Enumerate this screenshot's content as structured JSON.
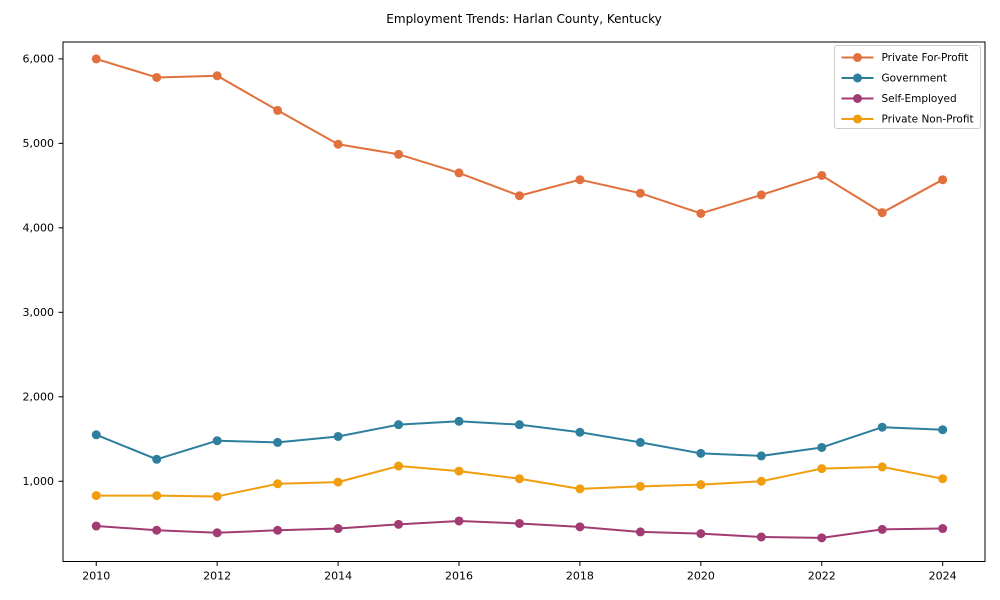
{
  "figure": {
    "background": "#ffffff",
    "spine_color": "#000000",
    "tick_color": "#000000",
    "legend": {
      "border_color": "#cccccc",
      "background": "#ffffff"
    }
  },
  "chart_data": {
    "type": "line",
    "title": "Employment Trends: Harlan County, Kentucky",
    "xlabel": "",
    "ylabel": "",
    "grid": false,
    "legend_position": "upper right",
    "marker": "circle",
    "x": [
      2010,
      2011,
      2012,
      2013,
      2014,
      2015,
      2016,
      2017,
      2018,
      2019,
      2020,
      2021,
      2022,
      2023,
      2024
    ],
    "series": [
      {
        "name": "Private For-Profit",
        "color": "#e1703c",
        "values": [
          6000,
          5780,
          5800,
          5390,
          4990,
          4870,
          4650,
          4380,
          4570,
          4410,
          4170,
          4390,
          4620,
          4180,
          4570
        ]
      },
      {
        "name": "Government",
        "color": "#2d7f9d",
        "values": [
          1550,
          1260,
          1480,
          1460,
          1530,
          1670,
          1710,
          1670,
          1580,
          1460,
          1330,
          1300,
          1400,
          1640,
          1610
        ]
      },
      {
        "name": "Self-Employed",
        "color": "#a23b72",
        "values": [
          470,
          420,
          390,
          420,
          440,
          490,
          530,
          500,
          460,
          400,
          380,
          340,
          330,
          430,
          440
        ]
      },
      {
        "name": "Private Non-Profit",
        "color": "#f09d0e",
        "values": [
          830,
          830,
          820,
          970,
          990,
          1180,
          1120,
          1030,
          910,
          940,
          960,
          1000,
          1150,
          1170,
          1030
        ]
      }
    ],
    "xlim": [
      2009.45,
      2024.7
    ],
    "ylim": [
      50,
      6200
    ],
    "xticks": [
      2010,
      2012,
      2014,
      2016,
      2018,
      2020,
      2022,
      2024
    ],
    "xtick_labels": [
      "2010",
      "2012",
      "2014",
      "2016",
      "2018",
      "2020",
      "2022",
      "2024"
    ],
    "yticks": [
      1000,
      2000,
      3000,
      4000,
      5000,
      6000
    ],
    "ytick_labels": [
      "1,000",
      "2,000",
      "3,000",
      "4,000",
      "5,000",
      "6,000"
    ]
  }
}
